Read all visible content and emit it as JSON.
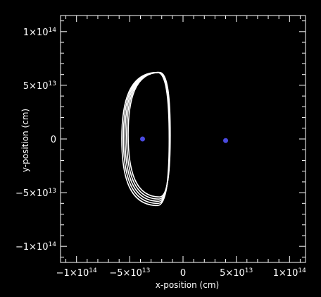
{
  "chart_data": {
    "type": "scatter",
    "title": "",
    "xlabel": "x-position (cm)",
    "ylabel": "y-position (cm)",
    "xlim": [
      -115000000000000,
      115000000000000
    ],
    "ylim": [
      -115000000000000,
      115000000000000
    ],
    "grid": false,
    "x_ticks": [
      {
        "value": -100000000000000,
        "mantissa": "−1",
        "exponent": "14"
      },
      {
        "value": -50000000000000,
        "mantissa": "−5",
        "exponent": "13"
      },
      {
        "value": 0,
        "mantissa": "",
        "exponent": "",
        "plain": "0"
      },
      {
        "value": 50000000000000,
        "mantissa": "5",
        "exponent": "13"
      },
      {
        "value": 100000000000000,
        "mantissa": "1",
        "exponent": "14"
      }
    ],
    "y_ticks": [
      {
        "value": 100000000000000,
        "mantissa": "1",
        "exponent": "14"
      },
      {
        "value": 50000000000000,
        "mantissa": "5",
        "exponent": "13"
      },
      {
        "value": 0,
        "mantissa": "",
        "exponent": "",
        "plain": "0"
      },
      {
        "value": -50000000000000,
        "mantissa": "−5",
        "exponent": "13"
      },
      {
        "value": -100000000000000,
        "mantissa": "−1",
        "exponent": "14"
      }
    ],
    "series": [
      {
        "kind": "orbit",
        "color": "#ffffff",
        "description_points": "repeated near-elliptical orbit loops",
        "loops": [
          {
            "cx": -22000000000000,
            "cy": 4000000000000,
            "rx_left": 29500000000000,
            "rx_right": 10000000000000,
            "ry": 58000000000000
          },
          {
            "cx": -22500000000000,
            "cy": 3000000000000,
            "rx_left": 30500000000000,
            "rx_right": 10200000000000,
            "ry": 59000000000000
          },
          {
            "cx": -23000000000000,
            "cy": 2000000000000,
            "rx_left": 31500000000000,
            "rx_right": 10500000000000,
            "ry": 60000000000000
          },
          {
            "cx": -23500000000000,
            "cy": 1000000000000,
            "rx_left": 32500000000000,
            "rx_right": 10800000000000,
            "ry": 61000000000000
          },
          {
            "cx": -24000000000000,
            "cy": 0,
            "rx_left": 33500000000000,
            "rx_right": 11000000000000,
            "ry": 62000000000000
          }
        ]
      },
      {
        "kind": "points",
        "color": "#4a4ae0",
        "x": [
          -38000000000000,
          40000000000000
        ],
        "y": [
          0,
          -1500000000000
        ]
      }
    ]
  }
}
